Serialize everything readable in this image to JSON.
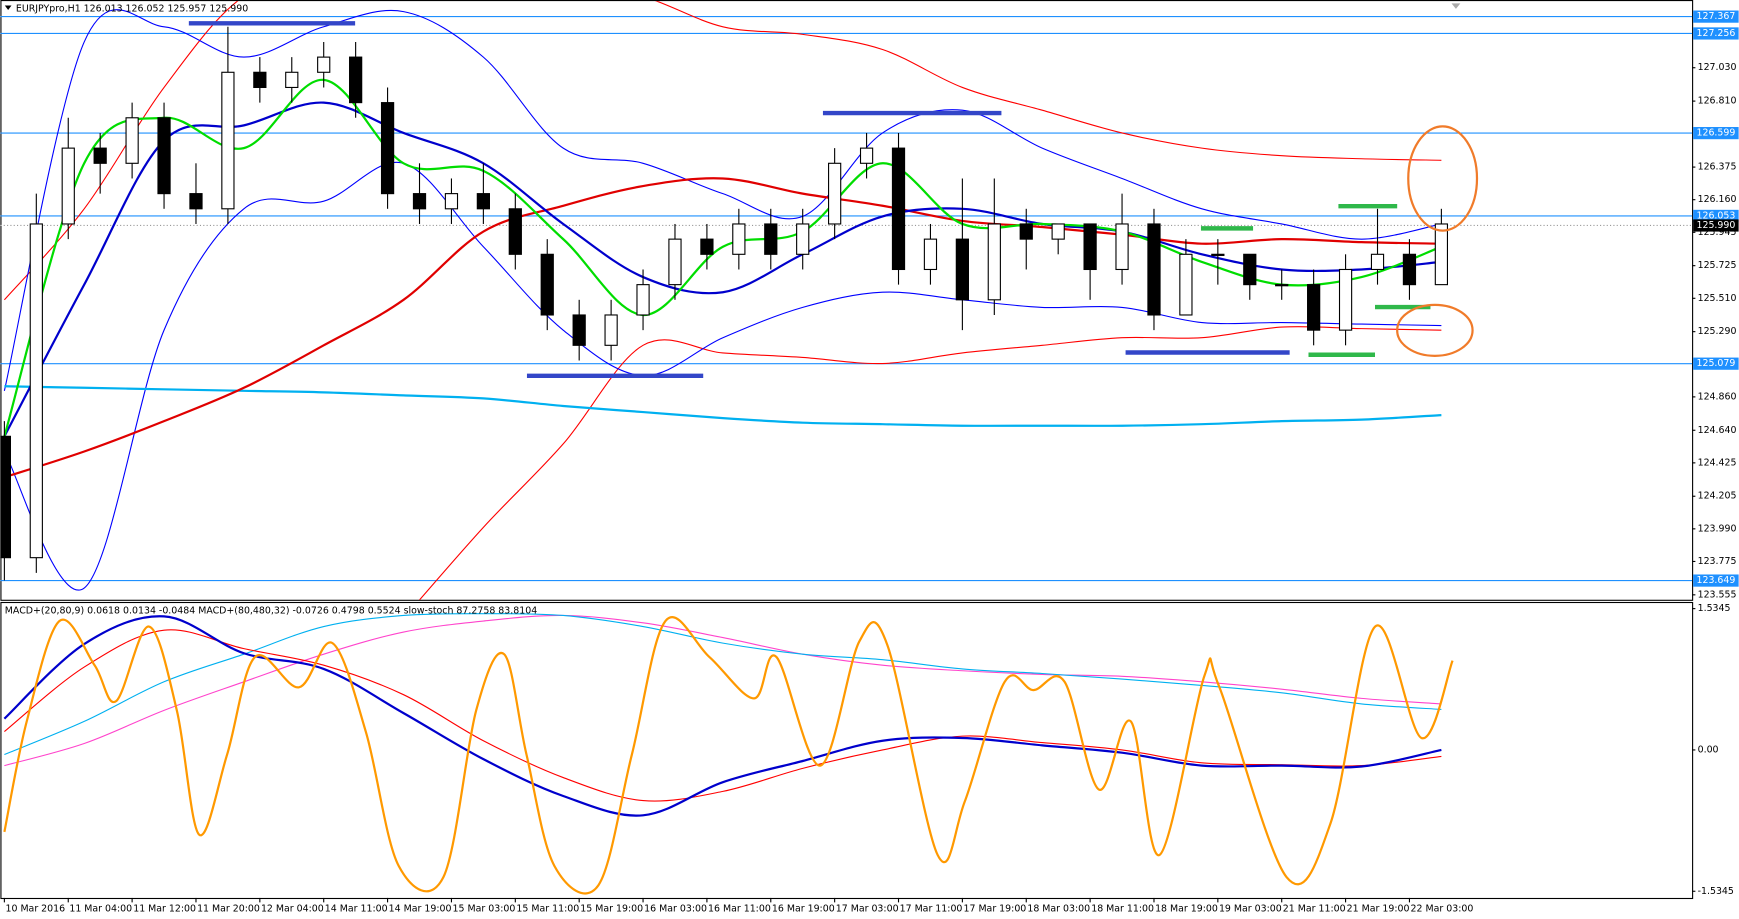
{
  "chart_data": [
    {
      "type": "candlestick",
      "title": "EURJPYpro,H1  126.013 126.052 125.957 125.990",
      "xlim": [
        -0.5,
        211.4
      ],
      "ylim": [
        123.53,
        127.44
      ],
      "yticks": [
        {
          "value": 127.03,
          "label": "127.030"
        },
        {
          "value": 126.81,
          "label": "126.810"
        },
        126.375,
        {
          "value": 126.16,
          "label": "126.160"
        },
        125.945,
        125.725,
        {
          "value": 125.51,
          "label": "125.510"
        },
        {
          "value": 125.29,
          "label": "125.290"
        },
        {
          "value": 124.86,
          "label": "124.860"
        },
        {
          "value": 124.64,
          "label": "124.640"
        },
        124.425,
        124.205,
        {
          "value": 123.99,
          "label": "123.990"
        },
        123.775,
        123.555
      ],
      "xticks": [
        {
          "value": 0,
          "label": "10 Mar 2016"
        },
        {
          "value": 8,
          "label": "11 Mar 04:00"
        },
        {
          "value": 16,
          "label": "11 Mar 12:00"
        },
        {
          "value": 24,
          "label": "11 Mar 20:00"
        },
        {
          "value": 32,
          "label": "12 Mar 04:00"
        },
        {
          "value": 40,
          "label": "14 Mar 11:00"
        },
        {
          "value": 48,
          "label": "14 Mar 19:00"
        },
        {
          "value": 56,
          "label": "15 Mar 03:00"
        },
        {
          "value": 64,
          "label": "15 Mar 11:00"
        },
        {
          "value": 72,
          "label": "15 Mar 19:00"
        },
        {
          "value": 80,
          "label": "16 Mar 03:00"
        },
        {
          "value": 88,
          "label": "16 Mar 11:00"
        },
        {
          "value": 96,
          "label": "16 Mar 19:00"
        },
        {
          "value": 104,
          "label": "17 Mar 03:00"
        },
        {
          "value": 112,
          "label": "17 Mar 11:00"
        },
        {
          "value": 120,
          "label": "17 Mar 19:00"
        },
        {
          "value": 128,
          "label": "18 Mar 03:00"
        },
        {
          "value": 136,
          "label": "18 Mar 11:00"
        },
        {
          "value": 144,
          "label": "18 Mar 19:00"
        },
        {
          "value": 152,
          "label": "19 Mar 03:00"
        },
        {
          "value": 160,
          "label": "21 Mar 11:00"
        },
        {
          "value": 168,
          "label": "21 Mar 19:00"
        },
        {
          "value": 176,
          "label": "22 Mar 03:00"
        }
      ],
      "levels": [
        127.367,
        127.256,
        126.599,
        126.053,
        125.079,
        123.649
      ],
      "level_color": "#1e90ff",
      "last_price": {
        "value": 125.99,
        "label": "125.990"
      },
      "candles": {
        "x": [
          0,
          4,
          8,
          12,
          16,
          20,
          24,
          28,
          32,
          36,
          40,
          44,
          48,
          52,
          56,
          60,
          64,
          68,
          72,
          76,
          80,
          84,
          88,
          92,
          96,
          100,
          104,
          108,
          112,
          116,
          120,
          124,
          128,
          132,
          136,
          140,
          144,
          148,
          152,
          156,
          160,
          164,
          168,
          172,
          176,
          180
        ],
        "open": [
          124.6,
          123.8,
          126.0,
          126.5,
          126.4,
          126.7,
          126.2,
          126.1,
          127.0,
          126.9,
          127.0,
          127.1,
          126.8,
          126.2,
          126.1,
          126.2,
          126.1,
          125.8,
          125.4,
          125.2,
          125.4,
          125.6,
          125.9,
          125.8,
          126.0,
          125.8,
          126.0,
          126.4,
          126.5,
          125.7,
          125.9,
          125.5,
          126.0,
          125.9,
          126.0,
          125.7,
          126.0,
          125.4,
          125.8,
          125.8,
          125.6,
          125.6,
          125.3,
          125.7,
          125.8,
          125.6
        ],
        "high": [
          124.7,
          126.2,
          126.7,
          126.6,
          126.8,
          126.8,
          126.4,
          127.3,
          127.1,
          127.1,
          127.2,
          127.2,
          126.9,
          126.4,
          126.3,
          126.4,
          126.2,
          125.9,
          125.5,
          125.5,
          125.7,
          126.0,
          126.0,
          126.1,
          126.1,
          126.1,
          126.5,
          126.6,
          126.6,
          126.0,
          126.3,
          126.3,
          126.1,
          126.0,
          126.0,
          126.2,
          126.1,
          125.9,
          125.9,
          125.8,
          125.7,
          125.7,
          125.8,
          126.1,
          125.9,
          126.1
        ],
        "low": [
          123.65,
          123.7,
          125.9,
          126.2,
          126.3,
          126.1,
          126.0,
          126.0,
          126.8,
          126.8,
          126.9,
          126.7,
          126.1,
          126.0,
          126.0,
          126.0,
          125.7,
          125.3,
          125.1,
          125.1,
          125.3,
          125.5,
          125.7,
          125.7,
          125.7,
          125.7,
          125.9,
          126.3,
          125.6,
          125.6,
          125.3,
          125.4,
          125.7,
          125.8,
          125.5,
          125.6,
          125.3,
          125.4,
          125.6,
          125.5,
          125.5,
          125.2,
          125.2,
          125.6,
          125.5,
          125.6
        ],
        "close": [
          123.8,
          126.0,
          126.5,
          126.4,
          126.7,
          126.2,
          126.1,
          127.0,
          126.9,
          127.0,
          127.1,
          126.8,
          126.2,
          126.1,
          126.2,
          126.1,
          125.8,
          125.4,
          125.2,
          125.4,
          125.6,
          125.9,
          125.8,
          126.0,
          125.8,
          126.0,
          126.4,
          126.5,
          125.7,
          125.9,
          125.5,
          126.0,
          125.9,
          126.0,
          125.7,
          126.0,
          125.4,
          125.8,
          125.8,
          125.6,
          125.6,
          125.3,
          125.7,
          125.8,
          125.6,
          126.0
        ]
      },
      "series": [
        {
          "color": "#ff0000",
          "thick": false,
          "x": [
            0,
            10,
            20,
            30,
            40,
            50,
            60,
            70,
            80,
            90,
            100,
            110,
            120,
            130,
            140,
            150,
            160,
            170,
            180
          ],
          "values": [
            125.5,
            126.1,
            126.9,
            127.5,
            127.6,
            127.6,
            127.6,
            127.6,
            127.5,
            127.3,
            127.25,
            127.15,
            126.9,
            126.75,
            126.6,
            126.5,
            126.45,
            126.43,
            126.42
          ]
        },
        {
          "color": "#ff0000",
          "thick": false,
          "x": [
            0,
            10,
            20,
            30,
            40,
            50,
            60,
            70,
            80,
            90,
            100,
            110,
            120,
            130,
            140,
            150,
            160,
            170,
            180
          ],
          "values": [
            null,
            null,
            null,
            null,
            null,
            123.4,
            124.0,
            124.55,
            125.2,
            125.15,
            125.12,
            125.08,
            125.15,
            125.2,
            125.25,
            125.25,
            125.32,
            125.31,
            125.3
          ]
        },
        {
          "color": "#0000ff",
          "thick": false,
          "x": [
            0,
            10,
            20,
            30,
            40,
            50,
            60,
            70,
            80,
            90,
            100,
            110,
            120,
            130,
            140,
            150,
            160,
            170,
            180
          ],
          "values": [
            124.9,
            127.2,
            127.3,
            127.1,
            127.3,
            127.4,
            127.1,
            126.5,
            126.4,
            126.2,
            126.05,
            126.6,
            126.75,
            126.5,
            126.3,
            126.1,
            126.0,
            125.9,
            126.0
          ]
        },
        {
          "color": "#0000ff",
          "thick": false,
          "x": [
            0,
            10,
            20,
            30,
            40,
            50,
            60,
            70,
            80,
            90,
            100,
            110,
            120,
            130,
            140,
            150,
            160,
            170,
            180
          ],
          "values": [
            124.5,
            123.6,
            125.3,
            126.1,
            126.15,
            126.4,
            125.85,
            125.3,
            125.0,
            125.25,
            125.45,
            125.55,
            125.5,
            125.45,
            125.45,
            125.35,
            125.35,
            125.34,
            125.33
          ]
        },
        {
          "color": "#00b0f0",
          "thick": true,
          "x": [
            0,
            10,
            20,
            30,
            40,
            50,
            60,
            70,
            80,
            90,
            100,
            110,
            120,
            130,
            140,
            150,
            160,
            170,
            180
          ],
          "values": [
            124.93,
            124.92,
            124.91,
            124.9,
            124.89,
            124.87,
            124.85,
            124.8,
            124.76,
            124.72,
            124.69,
            124.68,
            124.67,
            124.67,
            124.67,
            124.68,
            124.7,
            124.71,
            124.74
          ]
        },
        {
          "color": "#e00000",
          "thick": true,
          "x": [
            0,
            10,
            20,
            30,
            40,
            50,
            60,
            70,
            80,
            90,
            100,
            110,
            120,
            130,
            140,
            150,
            160,
            170,
            180
          ],
          "values": [
            124.33,
            124.5,
            124.7,
            124.92,
            125.2,
            125.5,
            125.95,
            126.12,
            126.25,
            126.3,
            126.2,
            126.12,
            126.02,
            125.98,
            125.93,
            125.87,
            125.9,
            125.88,
            125.87
          ]
        },
        {
          "color": "#0000cc",
          "thick": true,
          "x": [
            0,
            10,
            20,
            30,
            40,
            50,
            60,
            70,
            80,
            90,
            100,
            110,
            120,
            130,
            140,
            150,
            160,
            170,
            180
          ],
          "values": [
            124.6,
            125.6,
            126.55,
            126.65,
            126.8,
            126.6,
            126.4,
            126.0,
            125.65,
            125.55,
            125.8,
            126.05,
            126.1,
            126.0,
            125.95,
            125.8,
            125.7,
            125.7,
            125.75
          ]
        },
        {
          "color": "#00dd00",
          "thick": true,
          "x": [
            0,
            10,
            20,
            30,
            40,
            50,
            60,
            70,
            80,
            90,
            100,
            110,
            120,
            130,
            140,
            150,
            160,
            170,
            180
          ],
          "values": [
            124.6,
            126.4,
            126.7,
            126.5,
            126.95,
            126.4,
            126.35,
            125.9,
            125.4,
            125.85,
            125.95,
            126.4,
            126.0,
            126.0,
            125.95,
            125.75,
            125.6,
            125.65,
            125.85
          ]
        }
      ]
    },
    {
      "type": "line",
      "title": "MACD+(20,80,9) 0.0618 0.0134 -0.0484  MACD+(80,480,32) -0.0726 0.4798 0.5524  slow-stoch 87.2758 83.8104",
      "ylim": [
        -1.607,
        1.607
      ],
      "yticks": [
        1.5345,
        {
          "value": 0,
          "label": "0.00"
        },
        -1.5345
      ],
      "series": [
        {
          "color": "#ff44cc",
          "thick": false,
          "x": [
            0,
            10,
            20,
            30,
            40,
            50,
            60,
            70,
            80,
            90,
            100,
            110,
            120,
            130,
            140,
            150,
            160,
            170,
            180
          ],
          "values": [
            -0.17,
            0.07,
            0.43,
            0.74,
            1.04,
            1.28,
            1.4,
            1.46,
            1.38,
            1.22,
            1.04,
            0.92,
            0.86,
            0.82,
            0.8,
            0.74,
            0.66,
            0.56,
            0.5
          ]
        },
        {
          "color": "#00b0f0",
          "thick": false,
          "x": [
            0,
            10,
            20,
            30,
            40,
            50,
            60,
            70,
            80,
            90,
            100,
            110,
            120,
            130,
            140,
            150,
            160,
            170,
            180
          ],
          "values": [
            -0.05,
            0.31,
            0.74,
            1.04,
            1.34,
            1.46,
            1.48,
            1.46,
            1.34,
            1.16,
            1.04,
            0.98,
            0.88,
            0.83,
            0.77,
            0.7,
            0.62,
            0.5,
            0.44
          ]
        },
        {
          "color": "#ff0000",
          "thick": false,
          "x": [
            0,
            10,
            20,
            30,
            40,
            50,
            60,
            70,
            80,
            90,
            100,
            110,
            120,
            130,
            140,
            150,
            160,
            170,
            180
          ],
          "values": [
            0.2,
            0.9,
            1.3,
            1.1,
            0.92,
            0.6,
            0.1,
            -0.3,
            -0.55,
            -0.45,
            -0.2,
            0.0,
            0.15,
            0.08,
            0.0,
            -0.14,
            -0.16,
            -0.17,
            -0.07
          ]
        },
        {
          "color": "#0000cc",
          "thick": true,
          "x": [
            0,
            10,
            20,
            30,
            40,
            50,
            60,
            70,
            80,
            90,
            100,
            110,
            120,
            130,
            140,
            150,
            160,
            170,
            180
          ],
          "values": [
            0.34,
            1.15,
            1.45,
            1.05,
            0.88,
            0.4,
            -0.1,
            -0.5,
            -0.71,
            -0.35,
            -0.12,
            0.1,
            0.13,
            0.05,
            -0.03,
            -0.17,
            -0.17,
            -0.18,
            0.0
          ]
        },
        {
          "color": "#ff9900",
          "thick": true,
          "x": [
            0,
            2.8,
            6.9,
            11.3,
            14.0,
            18.1,
            21.6,
            24.4,
            27.9,
            31.4,
            36.9,
            41.1,
            45.3,
            49.4,
            55,
            59.1,
            62.6,
            65.4,
            68.9,
            74.4,
            78.6,
            82.8,
            88.3,
            93.9,
            96.7,
            102.2,
            107.1,
            110.6,
            116.9,
            120.3,
            125.3,
            128.9,
            132.8,
            137.1,
            141.1,
            144.7,
            150.3,
            152.2,
            160.6,
            166.1,
            171.7,
            177.5,
            181.4
          ],
          "values": [
            -0.89,
            0.31,
            1.4,
            0.92,
            0.53,
            1.34,
            0.43,
            -0.92,
            -0.05,
            1.01,
            0.68,
            1.16,
            0.19,
            -1.26,
            -1.38,
            0.43,
            1.04,
            -0.05,
            -1.26,
            -1.47,
            -0.05,
            1.4,
            1.01,
            0.56,
            1.01,
            -0.17,
            1.18,
            1.14,
            -1.14,
            -0.56,
            0.74,
            0.65,
            0.74,
            -0.43,
            0.31,
            -1.14,
            0.8,
            0.68,
            -1.38,
            -0.8,
            1.34,
            0.13,
            0.97
          ]
        }
      ]
    }
  ]
}
